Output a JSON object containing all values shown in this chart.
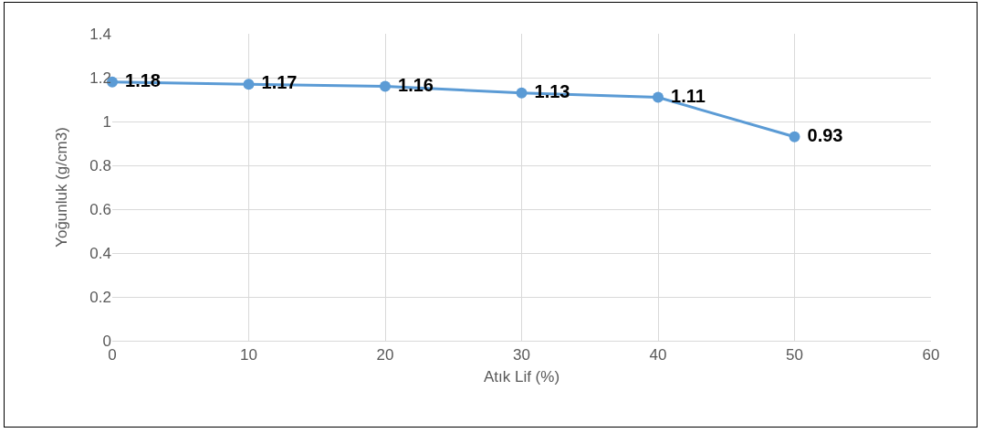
{
  "chart_data": {
    "type": "line",
    "xlabel": "Atık Lif (%)",
    "ylabel": "Yoğunluk (g/cm3)",
    "x": [
      0,
      10,
      20,
      30,
      40,
      50
    ],
    "series": [
      {
        "color": "#5b9bd5",
        "values": [
          1.18,
          1.17,
          1.16,
          1.13,
          1.11,
          0.93
        ]
      }
    ],
    "xlim": [
      0,
      60
    ],
    "xticks": [
      0,
      10,
      20,
      30,
      40,
      50,
      60
    ],
    "ylim": [
      0,
      1.4
    ],
    "yticks": [
      0,
      0.2,
      0.4,
      0.6,
      0.8,
      1,
      1.2,
      1.4
    ],
    "grid": true,
    "marker": "circle",
    "line_style": "solid",
    "data_labels": true
  }
}
